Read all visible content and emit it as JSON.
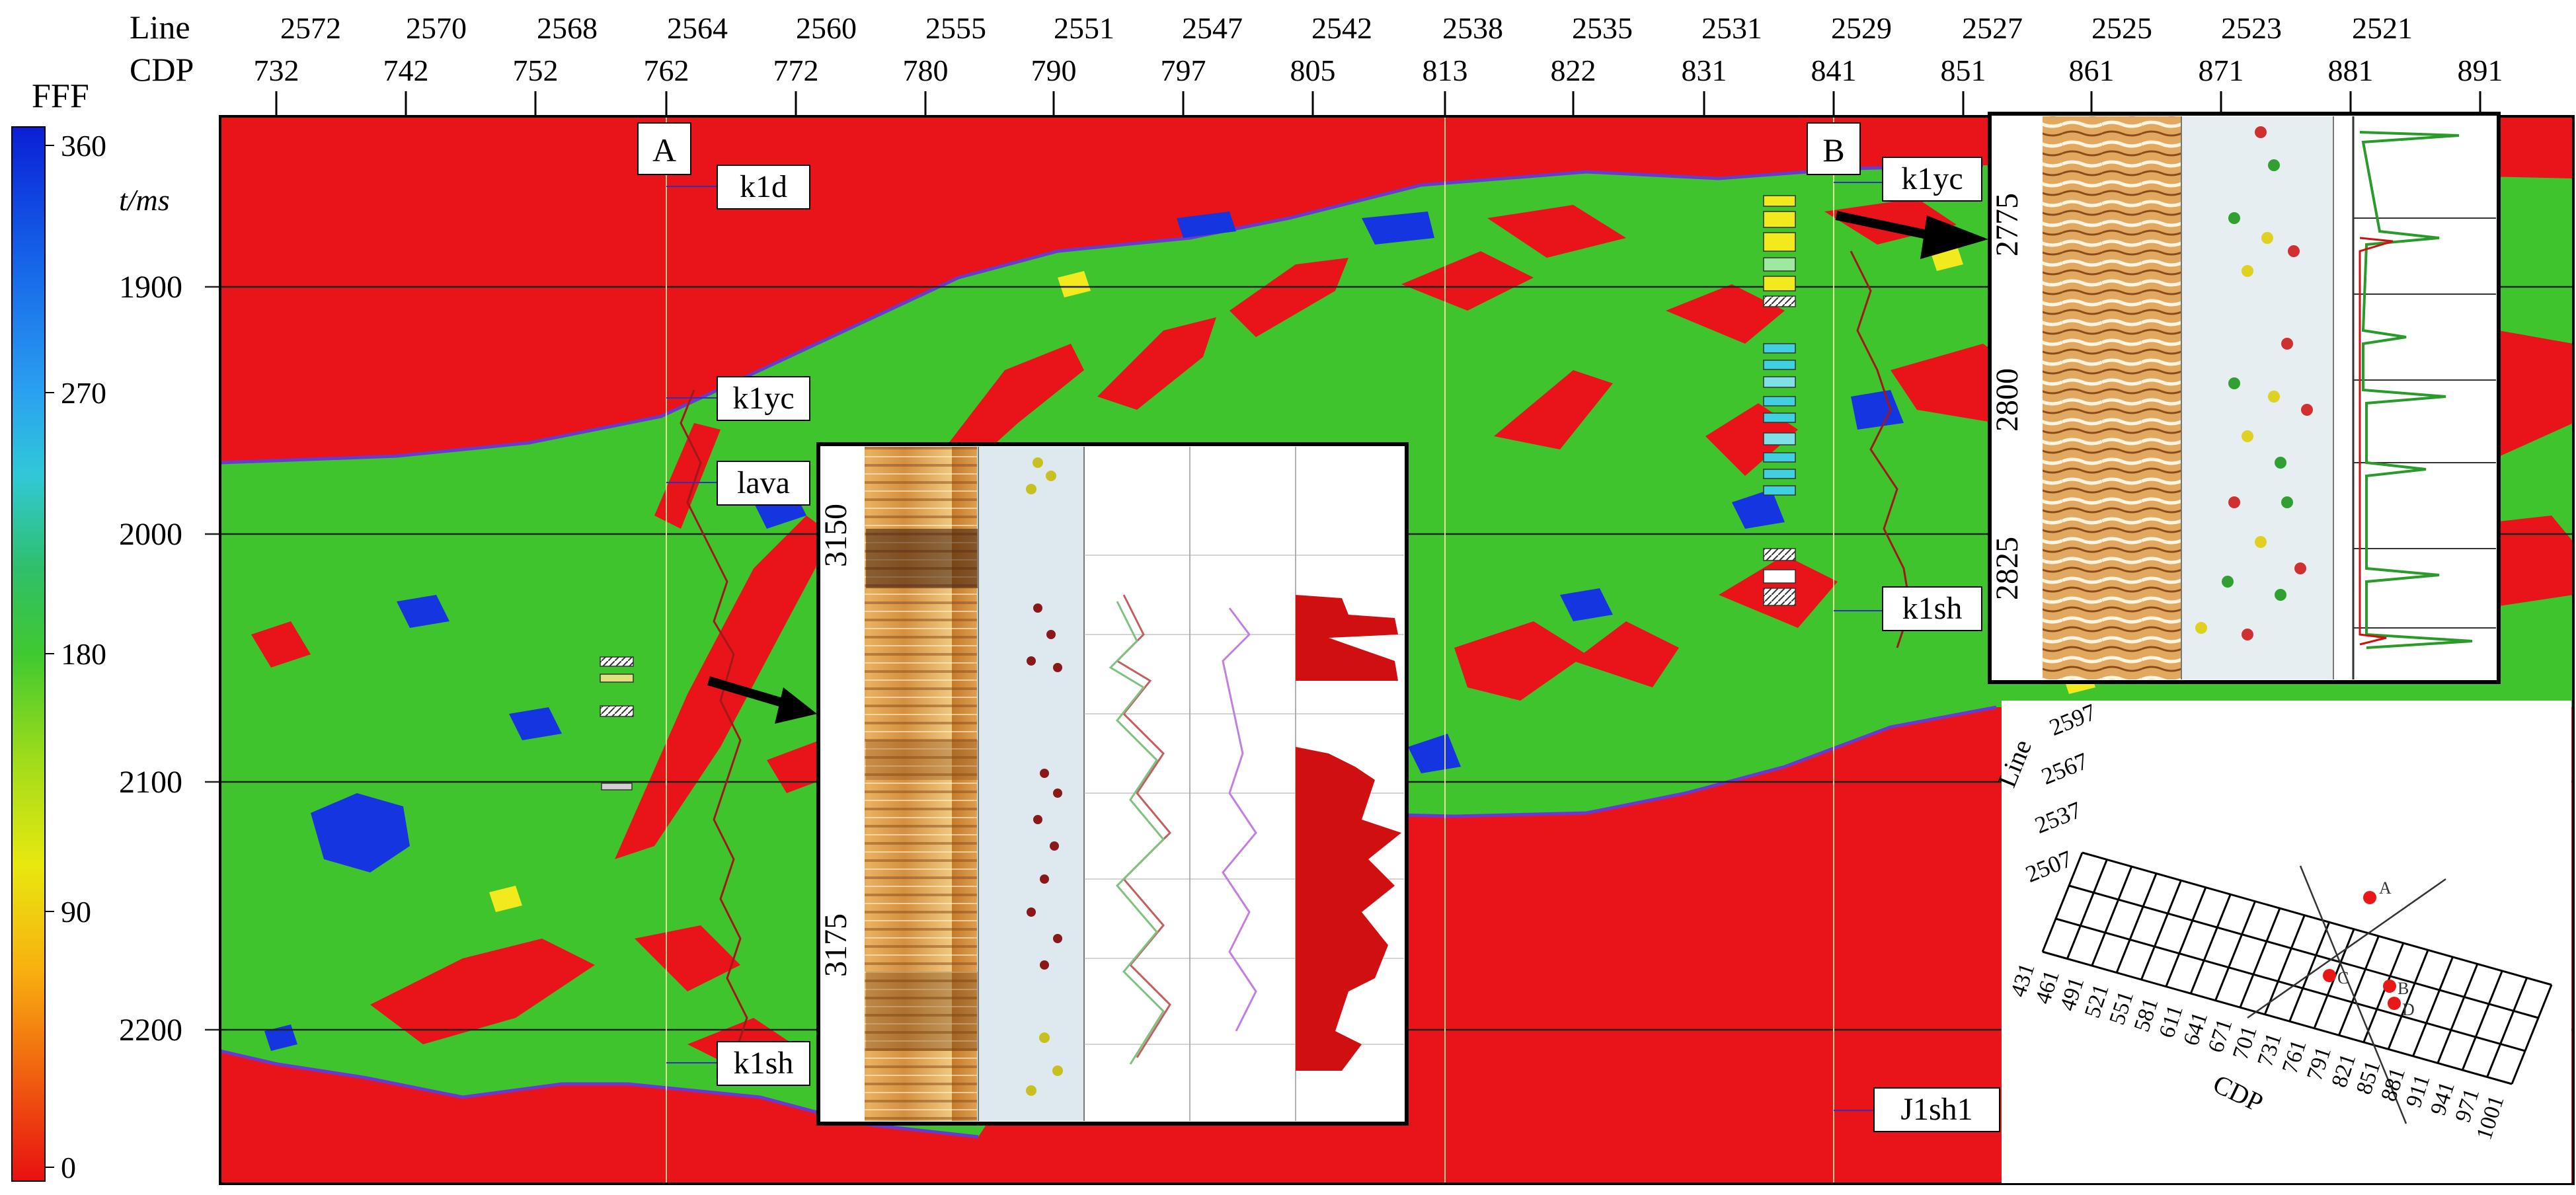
{
  "header": {
    "line_label": "Line",
    "cdp_label": "CDP",
    "line_ticks": [
      "2572",
      "2570",
      "2568",
      "2564",
      "2560",
      "2555",
      "2551",
      "2547",
      "2542",
      "2538",
      "2535",
      "2531",
      "2529",
      "2527",
      "2525",
      "2523",
      "2521"
    ],
    "cdp_ticks": [
      "732",
      "742",
      "752",
      "762",
      "772",
      "780",
      "790",
      "797",
      "805",
      "813",
      "822",
      "831",
      "841",
      "851",
      "861",
      "871",
      "881",
      "891"
    ]
  },
  "colorbar": {
    "title": "FFF",
    "unit_label": "t/ms",
    "labels": [
      "360",
      "270",
      "180",
      "90",
      "0"
    ],
    "colors_top_to_bottom": [
      "#0a1fd6",
      "#1560e8",
      "#2aa0f0",
      "#30c8d8",
      "#2fbf6a",
      "#3fc930",
      "#9fdc1a",
      "#e8e810",
      "#f8b010",
      "#f06010",
      "#e81010"
    ]
  },
  "time_axis": {
    "labels": [
      "1900",
      "2000",
      "2100",
      "2200"
    ]
  },
  "wells": {
    "A": {
      "name": "A",
      "markers": [
        "k1d",
        "k1yc",
        "lava",
        "k1sh"
      ]
    },
    "B": {
      "name": "B",
      "markers": [
        "k1yc",
        "k1sh",
        "J1sh1"
      ]
    }
  },
  "inset_center": {
    "depth_labels": [
      "3150",
      "3175"
    ]
  },
  "inset_right": {
    "depth_labels": [
      "2775",
      "2800",
      "2825"
    ]
  },
  "map_inset": {
    "line_label": "Line",
    "cdp_label": "CDP",
    "line_values": [
      "2597",
      "2567",
      "2537",
      "2507"
    ],
    "cdp_values": [
      "431",
      "461",
      "491",
      "521",
      "551",
      "581",
      "611",
      "641",
      "671",
      "701",
      "731",
      "761",
      "791",
      "821",
      "851",
      "881",
      "911",
      "941",
      "971",
      "1001"
    ],
    "point_labels": [
      "A",
      "B",
      "C",
      "D"
    ]
  },
  "colors": {
    "red": "#e8141a",
    "green": "#3fc42e",
    "blue": "#1535e0",
    "yellow": "#f2ea1c"
  }
}
